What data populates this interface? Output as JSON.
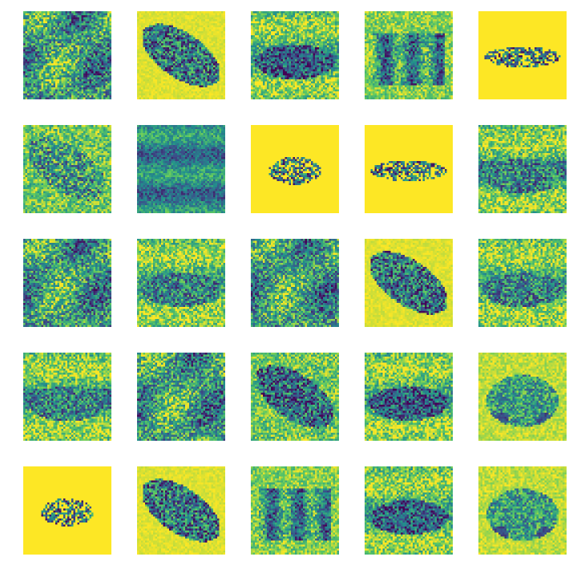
{
  "figure": {
    "grid": {
      "rows": 5,
      "cols": 5
    },
    "colormap": [
      "#440154",
      "#3b528b",
      "#21918c",
      "#5ec962",
      "#fde725"
    ],
    "tiles": [
      {
        "subject": "noise-texture"
      },
      {
        "subject": "car-diagonal"
      },
      {
        "subject": "car-side-dark"
      },
      {
        "subject": "truck-side"
      },
      {
        "subject": "car-sparse-dots"
      },
      {
        "subject": "car-diagonal-faint"
      },
      {
        "subject": "car-blur-stripes"
      },
      {
        "subject": "car-sparse-blob"
      },
      {
        "subject": "car-sparse-dots"
      },
      {
        "subject": "car-side-band"
      },
      {
        "subject": "noise-texture"
      },
      {
        "subject": "car-side-faint"
      },
      {
        "subject": "noise-texture"
      },
      {
        "subject": "car-diagonal"
      },
      {
        "subject": "car-side-faint"
      },
      {
        "subject": "car-side-band"
      },
      {
        "subject": "noise-texture"
      },
      {
        "subject": "car-diagonal-dark"
      },
      {
        "subject": "car-side-dark"
      },
      {
        "subject": "car-front-detailed"
      },
      {
        "subject": "car-sparse-blob"
      },
      {
        "subject": "car-diagonal"
      },
      {
        "subject": "truck-side"
      },
      {
        "subject": "car-side-dark"
      },
      {
        "subject": "car-front-detailed"
      }
    ]
  }
}
